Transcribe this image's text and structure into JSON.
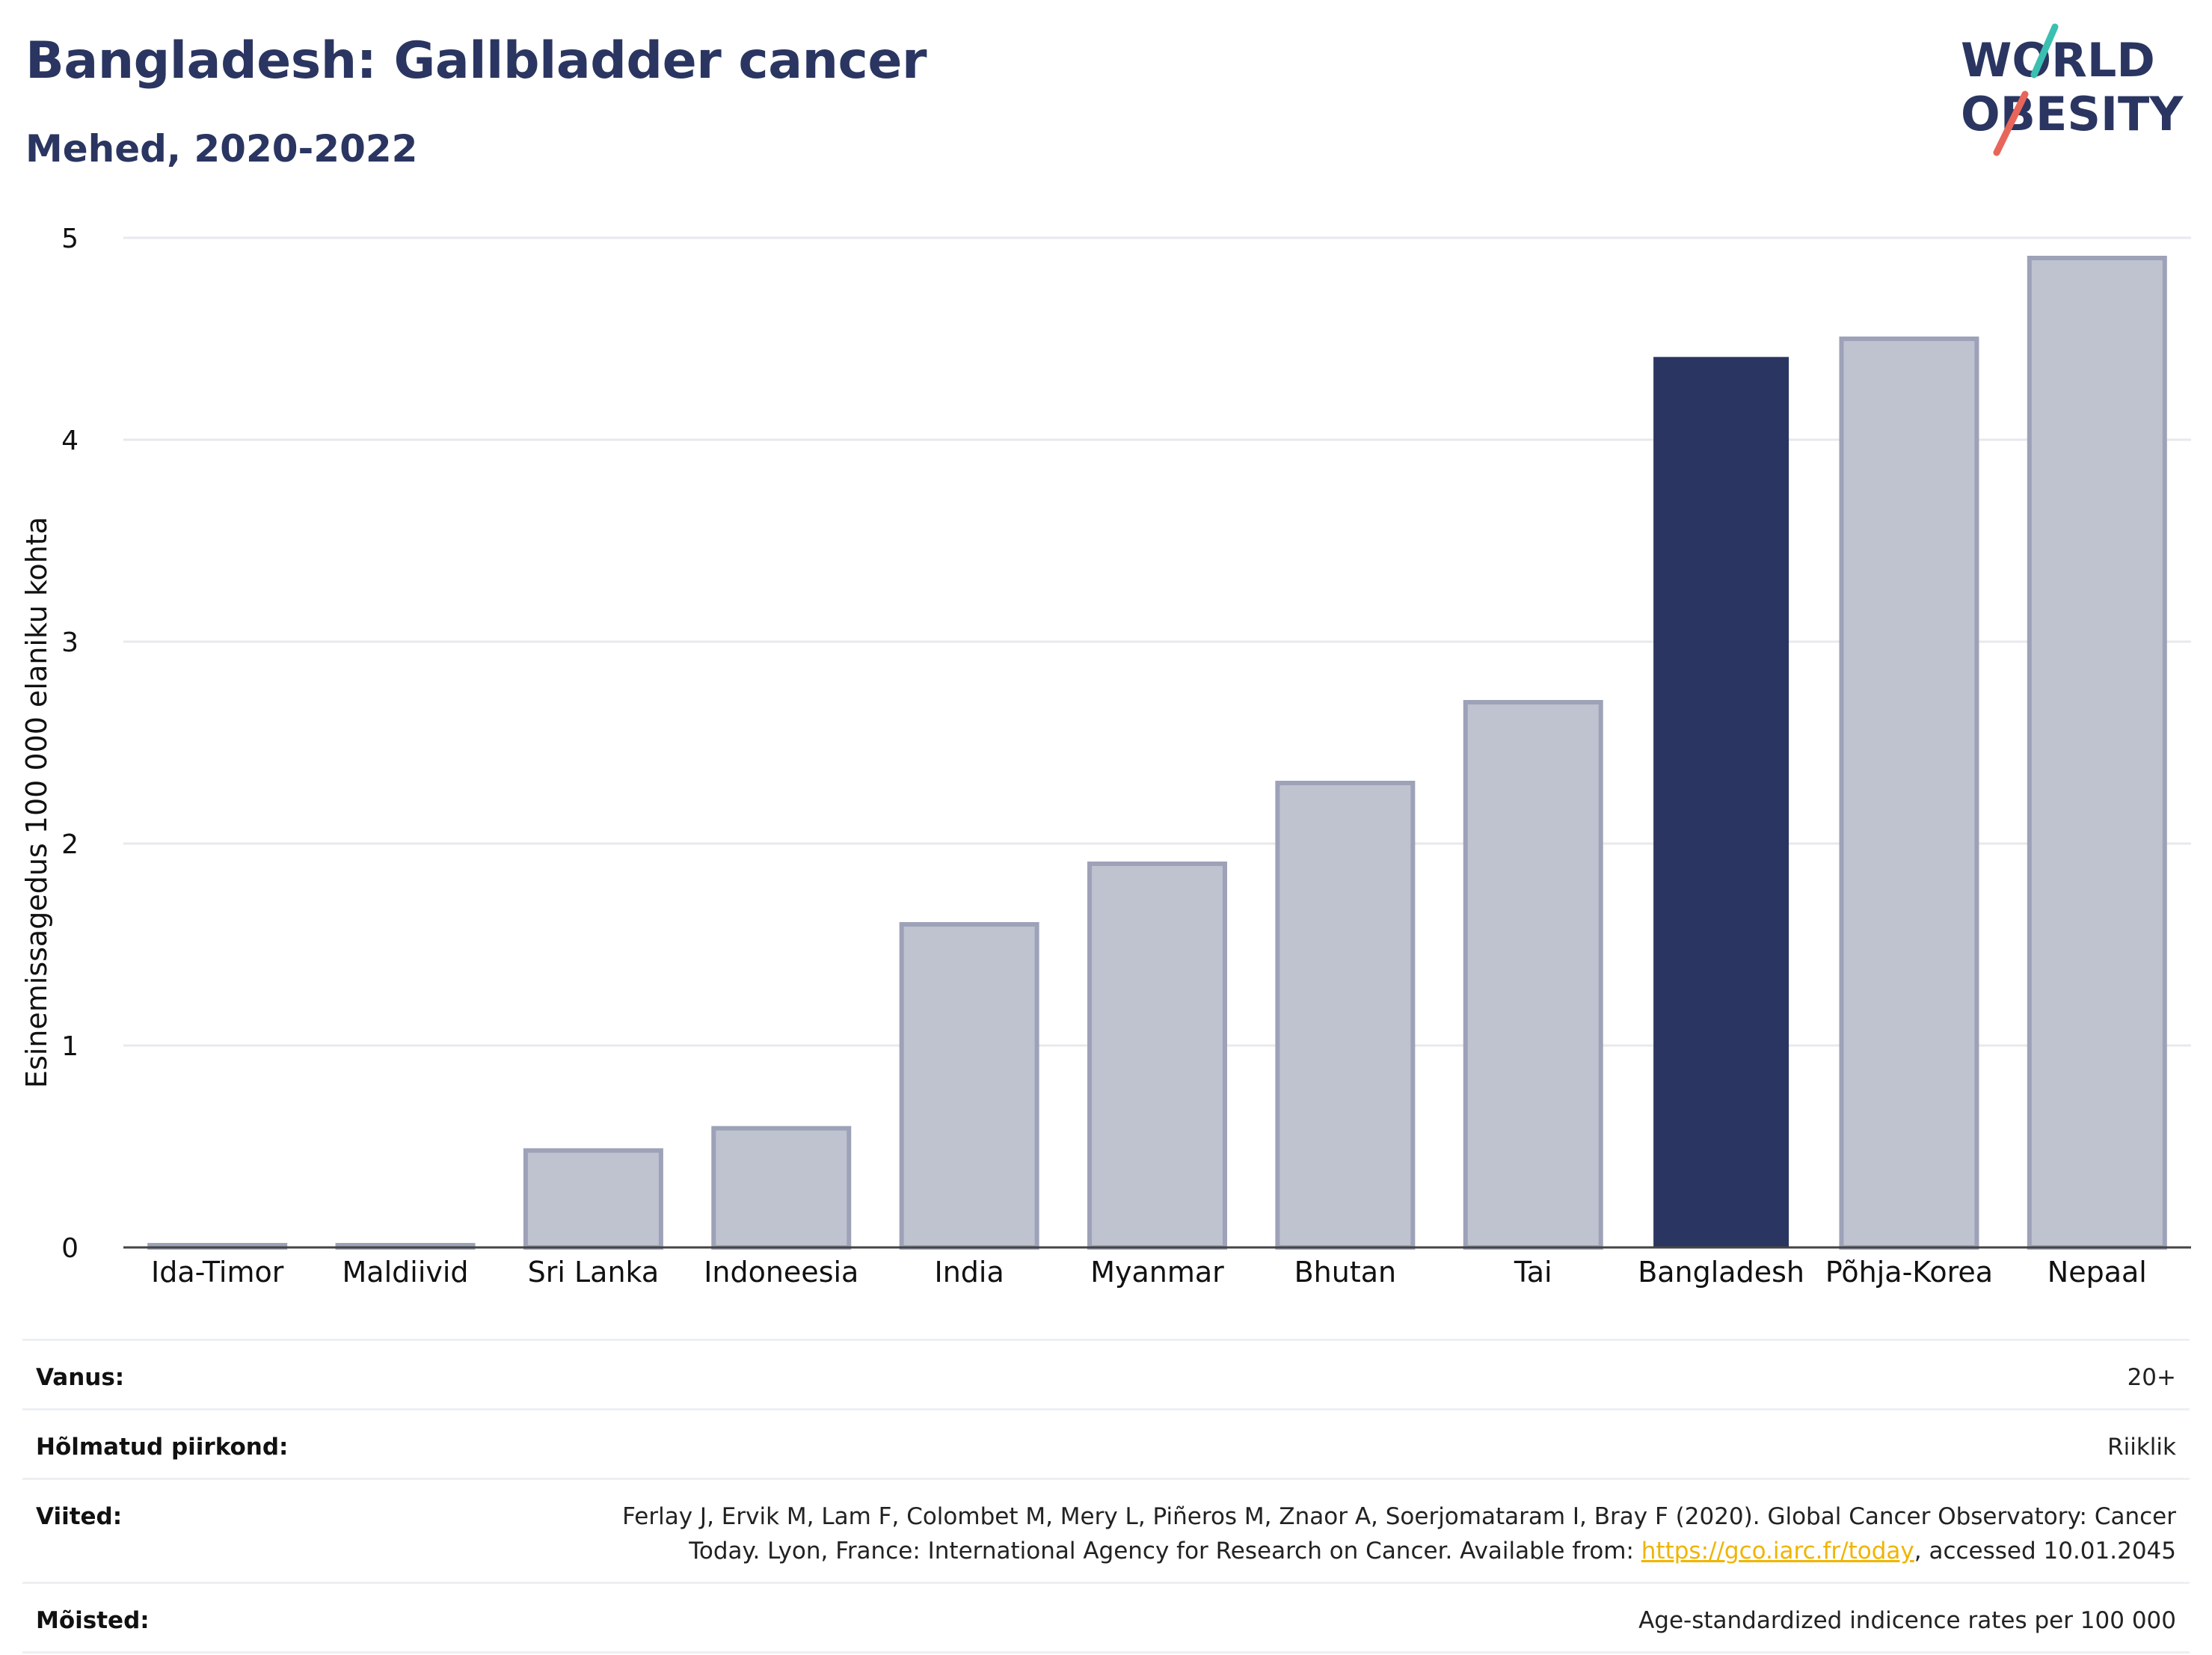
{
  "header": {
    "title": "Bangladesh: Gallbladder cancer",
    "subtitle": "Mehed, 2020-2022"
  },
  "logo": {
    "line1": "WORLD",
    "line2": "OBESITY",
    "accent_colors": [
      "#3bbfb0",
      "#e8655a"
    ]
  },
  "chart_data": {
    "type": "bar",
    "categories": [
      "Ida-Timor",
      "Maldiivid",
      "Sri Lanka",
      "Indoneesia",
      "India",
      "Myanmar",
      "Bhutan",
      "Tai",
      "Bangladesh",
      "Põhja-Korea",
      "Nepaal"
    ],
    "values": [
      0.01,
      0.01,
      0.48,
      0.59,
      1.6,
      1.9,
      2.3,
      2.7,
      4.41,
      4.5,
      4.9
    ],
    "highlight": "Bangladesh",
    "ylabel": "Esinemissagedus 100 000 elaniku kohta",
    "xlabel": "",
    "ylim": [
      0,
      5
    ],
    "yticks": [
      0,
      1,
      2,
      3,
      4,
      5
    ],
    "grid": true,
    "colors": {
      "bar": "#bfc2cf",
      "bar_edge": "#9da2b8",
      "highlight": "#2a3561",
      "grid": "#e8e9ee",
      "axis": "#444444"
    }
  },
  "footer": {
    "rows": [
      {
        "label": "Vanus:",
        "value": "20+"
      },
      {
        "label": "Hõlmatud piirkond:",
        "value": "Riiklik"
      },
      {
        "label": "Viited:",
        "value_line1": "Ferlay J, Ervik M, Lam F, Colombet M, Mery L, Piñeros M, Znaor A, Soerjomataram I, Bray F (2020). Global Cancer Observatory: Cancer",
        "value_line2_pre": "Today. Lyon, France: International Agency for Research on Cancer. Available from: ",
        "value_link": "https://gco.iarc.fr/today",
        "value_line2_post": ", accessed 10.01.2045"
      },
      {
        "label": "Mõisted:",
        "value": "Age-standardized indicence rates per 100 000"
      }
    ]
  }
}
